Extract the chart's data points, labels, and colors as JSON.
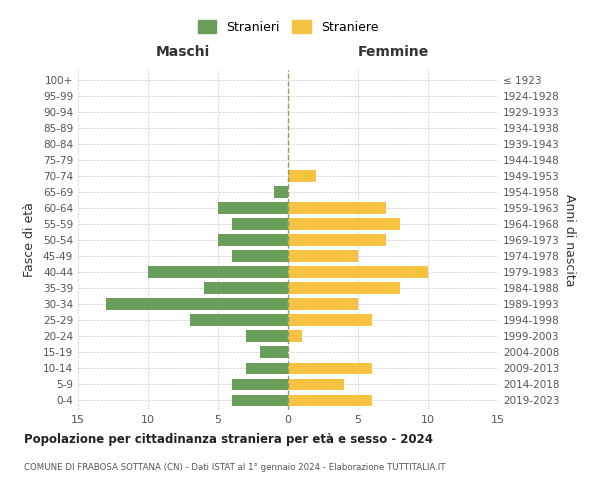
{
  "age_groups": [
    "0-4",
    "5-9",
    "10-14",
    "15-19",
    "20-24",
    "25-29",
    "30-34",
    "35-39",
    "40-44",
    "45-49",
    "50-54",
    "55-59",
    "60-64",
    "65-69",
    "70-74",
    "75-79",
    "80-84",
    "85-89",
    "90-94",
    "95-99",
    "100+"
  ],
  "birth_years": [
    "2019-2023",
    "2014-2018",
    "2009-2013",
    "2004-2008",
    "1999-2003",
    "1994-1998",
    "1989-1993",
    "1984-1988",
    "1979-1983",
    "1974-1978",
    "1969-1973",
    "1964-1968",
    "1959-1963",
    "1954-1958",
    "1949-1953",
    "1944-1948",
    "1939-1943",
    "1934-1938",
    "1929-1933",
    "1924-1928",
    "≤ 1923"
  ],
  "maschi": [
    4,
    4,
    3,
    2,
    3,
    7,
    13,
    6,
    10,
    4,
    5,
    4,
    5,
    1,
    0,
    0,
    0,
    0,
    0,
    0,
    0
  ],
  "femmine": [
    6,
    4,
    6,
    0,
    1,
    6,
    5,
    8,
    10,
    5,
    7,
    8,
    7,
    0,
    2,
    0,
    0,
    0,
    0,
    0,
    0
  ],
  "maschi_color": "#6a9f5b",
  "femmine_color": "#f5c242",
  "title": "Popolazione per cittadinanza straniera per età e sesso - 2024",
  "subtitle": "COMUNE DI FRABOSA SOTTANA (CN) - Dati ISTAT al 1° gennaio 2024 - Elaborazione TUTTITALIA.IT",
  "xlabel_left": "Maschi",
  "xlabel_right": "Femmine",
  "ylabel_left": "Fasce di età",
  "ylabel_right": "Anni di nascita",
  "legend_maschi": "Stranieri",
  "legend_femmine": "Straniere",
  "xlim": 15,
  "background_color": "#ffffff",
  "grid_color": "#cccccc"
}
